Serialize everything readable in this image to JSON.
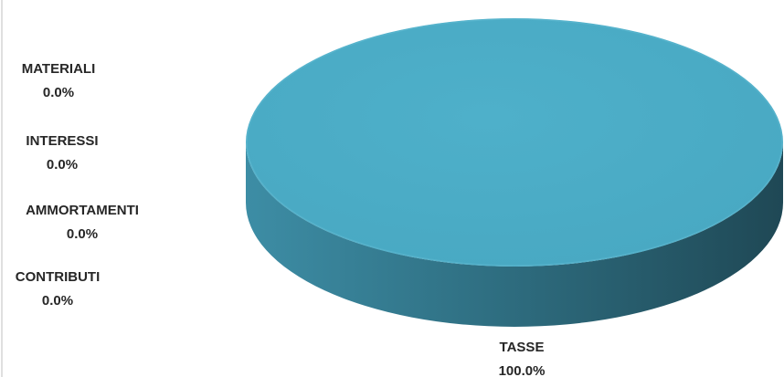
{
  "chart_data": {
    "type": "pie",
    "style": "3d",
    "title": "",
    "categories": [
      "MATERIALI",
      "INTERESSI",
      "AMMORTAMENTI",
      "CONTRIBUTI",
      "TASSE"
    ],
    "values": [
      0.0,
      0.0,
      0.0,
      0.0,
      100.0
    ],
    "value_labels": [
      "0.0%",
      "0.0%",
      "0.0%",
      "0.0%",
      "100.0%"
    ],
    "unit": "%",
    "legend": "none",
    "colors": {
      "TASSE": "#4BACC6"
    }
  }
}
